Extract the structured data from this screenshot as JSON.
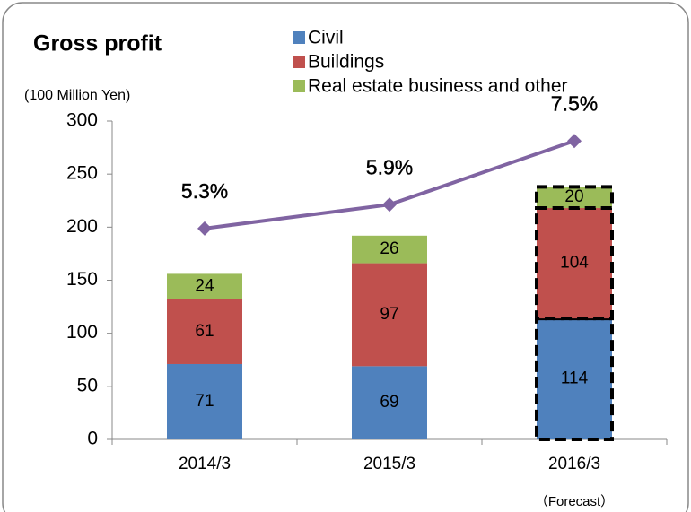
{
  "chart_data": {
    "type": "bar",
    "stacked": true,
    "title": "Gross profit",
    "y_label": "(100 Million Yen)",
    "categories": [
      "2014/3",
      "2015/3",
      "2016/3"
    ],
    "series": [
      {
        "name": "Civil",
        "color": "#4f81bd",
        "values": [
          71,
          69,
          114
        ]
      },
      {
        "name": "Buildings",
        "color": "#c0504d",
        "values": [
          61,
          97,
          104
        ]
      },
      {
        "name": "Real estate business and other",
        "color": "#9bbb59",
        "values": [
          24,
          26,
          20
        ]
      },
      {
        "type": "line",
        "axis": "y2",
        "color": "#8064a2",
        "values": [
          5.3,
          5.9,
          7.5
        ],
        "value_labels": [
          "5.3%",
          "5.9%",
          "7.5%"
        ]
      }
    ],
    "ylim": [
      0,
      300
    ],
    "yticks": [
      0,
      50,
      100,
      150,
      200,
      250,
      300
    ],
    "y2lim": [
      0,
      8
    ],
    "grid": false,
    "legend": "top",
    "annotations": [
      {
        "category": "2016/3",
        "text": "（Forecast）"
      }
    ]
  }
}
